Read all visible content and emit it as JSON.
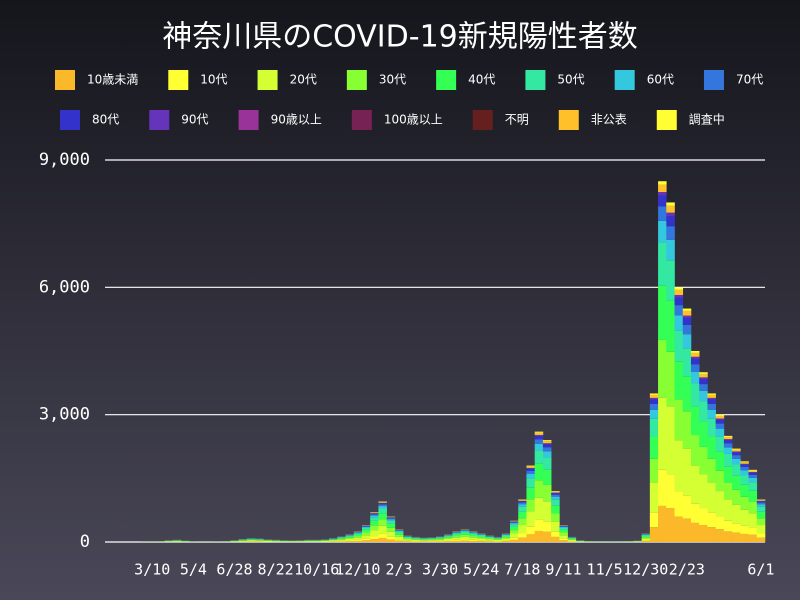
{
  "chart_data": {
    "type": "stacked_bar",
    "title": "神奈川県のCOVID-19新規陽性者数",
    "categories": [
      null,
      null,
      null,
      null,
      null,
      "3/10",
      null,
      null,
      null,
      null,
      "5/4",
      null,
      null,
      null,
      null,
      "6/28",
      null,
      null,
      null,
      null,
      "8/22",
      null,
      null,
      null,
      null,
      "10/16",
      null,
      null,
      null,
      null,
      "12/10",
      null,
      null,
      null,
      null,
      "2/3",
      null,
      null,
      null,
      null,
      "3/30",
      null,
      null,
      null,
      null,
      "5/24",
      null,
      null,
      null,
      null,
      "7/18",
      null,
      null,
      null,
      null,
      "9/11",
      null,
      null,
      null,
      null,
      "11/5",
      null,
      null,
      null,
      null,
      "12/30",
      null,
      null,
      null,
      null,
      "2/23",
      null,
      null,
      null,
      null,
      null,
      null,
      null,
      null,
      "6/1"
    ],
    "ylim": [
      0,
      9000
    ],
    "yticks": [
      0,
      {
        "value": 3000,
        "label": "3,000"
      },
      {
        "value": 6000,
        "label": "6,000"
      },
      {
        "value": 9000,
        "label": "9,000"
      }
    ],
    "grid": true,
    "series": [
      {
        "name": "10歳未満",
        "color": "#fbb829",
        "values": [
          0,
          0,
          0,
          0,
          1,
          1,
          2,
          4,
          5,
          3,
          1,
          1,
          1,
          1,
          2,
          4,
          7,
          9,
          8,
          6,
          5,
          4,
          4,
          4,
          5,
          5,
          6,
          9,
          13,
          18,
          25,
          40,
          70,
          95,
          60,
          30,
          15,
          12,
          10,
          11,
          13,
          18,
          25,
          30,
          25,
          20,
          15,
          12,
          20,
          50,
          100,
          180,
          260,
          240,
          120,
          40,
          12,
          4,
          2,
          2,
          2,
          1,
          2,
          2,
          3,
          20,
          350,
          850,
          800,
          600,
          550,
          450,
          400,
          350,
          300,
          250,
          220,
          190,
          170,
          100
        ]
      },
      {
        "name": "10代",
        "color": "#ffff33",
        "values": [
          0,
          0,
          0,
          0,
          1,
          1,
          2,
          4,
          5,
          3,
          1,
          1,
          1,
          1,
          2,
          4,
          7,
          9,
          8,
          6,
          5,
          4,
          4,
          4,
          5,
          5,
          6,
          9,
          13,
          18,
          25,
          40,
          70,
          95,
          60,
          30,
          15,
          12,
          10,
          11,
          13,
          18,
          25,
          30,
          25,
          20,
          15,
          12,
          20,
          50,
          100,
          180,
          260,
          240,
          120,
          40,
          12,
          4,
          2,
          2,
          2,
          1,
          2,
          2,
          3,
          20,
          350,
          850,
          800,
          600,
          550,
          450,
          400,
          350,
          300,
          250,
          220,
          190,
          170,
          100
        ]
      },
      {
        "name": "20代",
        "color": "#d4ff33",
        "values": [
          0,
          0,
          0,
          0,
          1,
          2,
          4,
          8,
          10,
          6,
          2,
          1,
          1,
          2,
          4,
          8,
          14,
          18,
          16,
          12,
          10,
          8,
          7,
          8,
          10,
          10,
          12,
          18,
          26,
          36,
          50,
          80,
          140,
          190,
          120,
          60,
          30,
          24,
          20,
          22,
          26,
          36,
          50,
          60,
          50,
          40,
          30,
          24,
          40,
          100,
          200,
          360,
          520,
          480,
          240,
          80,
          24,
          8,
          4,
          3,
          3,
          2,
          3,
          4,
          6,
          40,
          700,
          1700,
          1600,
          1200,
          1100,
          900,
          800,
          700,
          600,
          500,
          440,
          380,
          340,
          200
        ]
      },
      {
        "name": "30代",
        "color": "#88ff33",
        "values": [
          0,
          0,
          0,
          0,
          1,
          1,
          3,
          6,
          8,
          5,
          2,
          1,
          1,
          2,
          3,
          6,
          11,
          14,
          13,
          10,
          8,
          6,
          6,
          6,
          8,
          8,
          10,
          14,
          21,
          29,
          40,
          64,
          112,
          152,
          96,
          48,
          24,
          19,
          16,
          18,
          21,
          29,
          40,
          48,
          40,
          32,
          24,
          19,
          32,
          80,
          160,
          288,
          416,
          384,
          192,
          64,
          19,
          6,
          3,
          2,
          2,
          2,
          2,
          3,
          5,
          32,
          560,
          1360,
          1280,
          960,
          880,
          720,
          640,
          560,
          480,
          400,
          352,
          304,
          272,
          160
        ]
      },
      {
        "name": "40代",
        "color": "#33ff55",
        "values": [
          0,
          0,
          0,
          0,
          1,
          1,
          3,
          6,
          8,
          5,
          2,
          1,
          1,
          2,
          3,
          6,
          11,
          14,
          12,
          9,
          8,
          6,
          5,
          6,
          8,
          8,
          9,
          14,
          20,
          27,
          38,
          60,
          105,
          143,
          90,
          45,
          23,
          18,
          15,
          17,
          20,
          27,
          38,
          45,
          38,
          30,
          23,
          18,
          30,
          75,
          150,
          270,
          390,
          360,
          180,
          60,
          18,
          6,
          3,
          2,
          2,
          2,
          2,
          3,
          5,
          30,
          525,
          1275,
          1200,
          900,
          825,
          675,
          600,
          525,
          450,
          375,
          330,
          285,
          255,
          150
        ]
      },
      {
        "name": "50代",
        "color": "#33e8a0",
        "values": [
          0,
          0,
          0,
          0,
          1,
          1,
          2,
          5,
          6,
          4,
          1,
          1,
          1,
          1,
          2,
          5,
          8,
          11,
          10,
          7,
          6,
          5,
          4,
          5,
          6,
          6,
          7,
          11,
          16,
          22,
          30,
          48,
          84,
          114,
          72,
          36,
          18,
          14,
          12,
          13,
          16,
          22,
          30,
          36,
          30,
          24,
          18,
          14,
          24,
          60,
          120,
          216,
          312,
          288,
          144,
          48,
          14,
          5,
          2,
          2,
          2,
          1,
          2,
          2,
          4,
          24,
          420,
          1020,
          960,
          720,
          660,
          540,
          480,
          420,
          360,
          300,
          264,
          228,
          204,
          120
        ]
      },
      {
        "name": "60代",
        "color": "#33c8dd",
        "values": [
          0,
          0,
          0,
          0,
          0,
          0,
          1,
          2,
          3,
          2,
          1,
          0,
          0,
          1,
          1,
          2,
          4,
          5,
          5,
          4,
          3,
          2,
          2,
          2,
          3,
          3,
          4,
          5,
          8,
          11,
          15,
          24,
          42,
          57,
          36,
          18,
          9,
          7,
          6,
          7,
          8,
          11,
          15,
          18,
          15,
          12,
          9,
          7,
          12,
          30,
          60,
          108,
          156,
          144,
          72,
          24,
          7,
          2,
          1,
          1,
          1,
          1,
          1,
          1,
          2,
          12,
          210,
          510,
          480,
          360,
          330,
          270,
          240,
          210,
          180,
          150,
          132,
          114,
          102,
          60
        ]
      },
      {
        "name": "70代",
        "color": "#3377dd",
        "values": [
          0,
          0,
          0,
          0,
          0,
          0,
          1,
          2,
          2,
          1,
          0,
          0,
          0,
          0,
          1,
          2,
          3,
          4,
          3,
          2,
          2,
          2,
          1,
          2,
          2,
          2,
          2,
          4,
          5,
          7,
          10,
          16,
          28,
          38,
          24,
          12,
          6,
          5,
          4,
          4,
          5,
          7,
          10,
          12,
          10,
          8,
          6,
          5,
          8,
          20,
          40,
          72,
          104,
          96,
          48,
          16,
          5,
          2,
          1,
          1,
          1,
          0,
          1,
          1,
          1,
          8,
          140,
          340,
          320,
          240,
          220,
          180,
          160,
          140,
          120,
          100,
          88,
          76,
          68,
          40
        ]
      },
      {
        "name": "80代",
        "color": "#3333cc",
        "values": [
          0,
          0,
          0,
          0,
          0,
          0,
          1,
          1,
          2,
          1,
          0,
          0,
          0,
          0,
          1,
          1,
          2,
          3,
          2,
          2,
          2,
          1,
          1,
          1,
          2,
          2,
          2,
          3,
          4,
          5,
          8,
          12,
          21,
          29,
          18,
          9,
          5,
          4,
          3,
          3,
          4,
          5,
          8,
          9,
          8,
          6,
          5,
          4,
          6,
          15,
          30,
          54,
          78,
          72,
          36,
          12,
          4,
          1,
          1,
          0,
          0,
          0,
          0,
          1,
          1,
          6,
          105,
          255,
          240,
          180,
          165,
          135,
          120,
          105,
          90,
          75,
          66,
          57,
          51,
          30
        ]
      },
      {
        "name": "90代",
        "color": "#6633bb",
        "values": [
          0,
          0,
          0,
          0,
          0,
          0,
          0,
          0,
          1,
          0,
          0,
          0,
          0,
          0,
          0,
          0,
          1,
          1,
          1,
          1,
          1,
          0,
          0,
          0,
          1,
          1,
          1,
          1,
          1,
          2,
          3,
          4,
          7,
          10,
          6,
          3,
          2,
          1,
          1,
          1,
          1,
          2,
          3,
          3,
          3,
          2,
          2,
          1,
          2,
          5,
          10,
          18,
          26,
          24,
          12,
          4,
          1,
          0,
          0,
          0,
          0,
          0,
          0,
          0,
          0,
          2,
          35,
          85,
          80,
          60,
          55,
          45,
          40,
          35,
          30,
          25,
          22,
          19,
          17,
          10
        ]
      },
      {
        "name": "90歳以上",
        "color": "#993399",
        "values": [
          0,
          0,
          0,
          0,
          0,
          0,
          0,
          0,
          0,
          0,
          0,
          0,
          0,
          0,
          0,
          0,
          0,
          0,
          0,
          0,
          0,
          0,
          0,
          0,
          0,
          0,
          0,
          0,
          0,
          0,
          0,
          0,
          0,
          0,
          0,
          0,
          0,
          0,
          0,
          0,
          0,
          0,
          0,
          0,
          0,
          0,
          0,
          0,
          0,
          0,
          0,
          0,
          0,
          0,
          0,
          0,
          0,
          0,
          0,
          0,
          0,
          0,
          0,
          0,
          0,
          0,
          0,
          0,
          0,
          0,
          0,
          0,
          0,
          0,
          0,
          0,
          0,
          0,
          0,
          0
        ]
      },
      {
        "name": "100歳以上",
        "color": "#772255",
        "values": [
          0,
          0,
          0,
          0,
          0,
          0,
          0,
          0,
          0,
          0,
          0,
          0,
          0,
          0,
          0,
          0,
          0,
          0,
          0,
          0,
          0,
          0,
          0,
          0,
          0,
          0,
          0,
          0,
          0,
          0,
          0,
          0,
          0,
          0,
          0,
          0,
          0,
          0,
          0,
          0,
          0,
          0,
          0,
          0,
          0,
          0,
          0,
          0,
          0,
          0,
          0,
          0,
          0,
          0,
          0,
          0,
          0,
          0,
          0,
          0,
          0,
          0,
          0,
          0,
          0,
          0,
          0,
          0,
          0,
          0,
          0,
          0,
          0,
          0,
          0,
          0,
          0,
          0,
          0,
          0
        ]
      },
      {
        "name": "不明",
        "color": "#661f1f",
        "values": [
          0,
          0,
          0,
          0,
          0,
          0,
          0,
          0,
          0,
          0,
          0,
          0,
          0,
          0,
          0,
          0,
          0,
          0,
          0,
          0,
          0,
          0,
          0,
          0,
          0,
          0,
          0,
          0,
          0,
          0,
          0,
          0,
          0,
          0,
          0,
          0,
          0,
          0,
          0,
          0,
          0,
          0,
          0,
          0,
          0,
          0,
          0,
          0,
          0,
          0,
          0,
          0,
          0,
          0,
          0,
          0,
          0,
          0,
          0,
          0,
          0,
          0,
          0,
          0,
          0,
          0,
          0,
          0,
          0,
          0,
          0,
          0,
          0,
          0,
          0,
          0,
          0,
          0,
          0,
          0
        ]
      },
      {
        "name": "非公表",
        "color": "#ffc02a",
        "values": [
          0,
          0,
          0,
          0,
          0,
          0,
          0,
          1,
          1,
          1,
          0,
          0,
          0,
          0,
          0,
          1,
          1,
          2,
          2,
          1,
          1,
          1,
          1,
          1,
          1,
          1,
          1,
          2,
          3,
          4,
          5,
          8,
          14,
          19,
          12,
          6,
          3,
          2,
          2,
          2,
          3,
          4,
          5,
          6,
          5,
          4,
          3,
          2,
          4,
          10,
          20,
          36,
          52,
          48,
          24,
          8,
          2,
          1,
          0,
          0,
          0,
          0,
          0,
          0,
          1,
          4,
          70,
          170,
          160,
          120,
          110,
          90,
          80,
          70,
          60,
          50,
          44,
          38,
          34,
          20
        ]
      },
      {
        "name": "調査中",
        "color": "#ffff33",
        "values": [
          0,
          0,
          0,
          0,
          0,
          0,
          0,
          0,
          1,
          0,
          0,
          0,
          0,
          0,
          0,
          0,
          1,
          1,
          1,
          1,
          1,
          0,
          0,
          0,
          1,
          1,
          1,
          1,
          1,
          2,
          3,
          4,
          7,
          10,
          6,
          3,
          2,
          1,
          1,
          1,
          1,
          2,
          3,
          3,
          3,
          2,
          2,
          1,
          2,
          5,
          10,
          18,
          26,
          24,
          12,
          4,
          1,
          0,
          0,
          0,
          0,
          0,
          0,
          0,
          0,
          2,
          35,
          85,
          80,
          60,
          55,
          45,
          40,
          35,
          30,
          25,
          22,
          19,
          17,
          10
        ]
      }
    ]
  }
}
